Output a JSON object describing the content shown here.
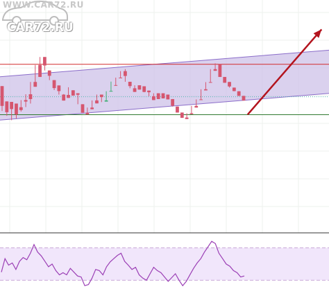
{
  "watermark": {
    "top_text": "WWW.CAR72.RU",
    "logo_text": "CAR72.RU"
  },
  "colors": {
    "bull": "#3fae73",
    "bear": "#d5566f",
    "channel_fill": "#cdc2e8",
    "channel_line": "#8a6cc9",
    "resistance": "#d22b2b",
    "support": "#2f7a2f",
    "price_dots": "#4fb7b0",
    "forecast_arrow": "#b3141e",
    "oscillator_line": "#9b3fb5",
    "oscillator_band": "#f1e6fb",
    "oscillator_band_edge": "#c8a8d8",
    "grid": "#eef0ee"
  },
  "chart_data": [
    {
      "type": "candlestick",
      "x_range": [
        0,
        64
      ],
      "y_range": [
        0,
        100
      ],
      "channel": {
        "upper": [
          [
            0,
            70.5
          ],
          [
            64,
            86.5
          ]
        ],
        "lower": [
          [
            0,
            44.5
          ],
          [
            64,
            60.5
          ]
        ]
      },
      "resistance_level": 78,
      "support_level": 47.7,
      "current_price_level": 58.5,
      "forecast_arrow": {
        "from": [
          50.2,
          47.8
        ],
        "to": [
          63.5,
          99
        ]
      },
      "candles": [
        [
          64.9,
          49.9,
          53.0,
          53.0
        ],
        [
          55.7,
          47.0,
          49.2,
          55.4
        ],
        [
          55.4,
          44.4,
          51.1,
          54.4
        ],
        [
          54.4,
          45.4,
          47.8,
          52.2
        ],
        [
          52.2,
          49.6,
          50.5,
          56.5
        ],
        [
          56.5,
          52.3,
          55.6,
          60.0
        ],
        [
          60.0,
          54.4,
          57.1,
          67.4
        ],
        [
          67.4,
          66.4,
          64.5,
          77.6
        ],
        [
          77.6,
          70.4,
          70.4,
          82.4
        ],
        [
          82.4,
          76.2,
          77.3,
          74.3
        ],
        [
          74.3,
          69.3,
          71.1,
          68.5
        ],
        [
          68.5,
          62.5,
          63.7,
          65.3
        ],
        [
          65.3,
          63.4,
          61.9,
          59.8
        ],
        [
          59.8,
          60.1,
          56.2,
          59.6
        ],
        [
          59.6,
          64.2,
          57.8,
          62.4
        ],
        [
          62.4,
          60.5,
          59.2,
          60.6
        ],
        [
          60.6,
          58.2,
          59.7,
          54.0
        ],
        [
          54.0,
          52.7,
          48.9,
          48.9
        ],
        [
          48.9,
          50.0,
          47.8,
          52.0
        ],
        [
          52.0,
          50.9,
          51.0,
          56.3
        ],
        [
          56.3,
          56.7,
          54.5,
          59.8
        ],
        [
          59.8,
          55.3,
          58.3,
          55.6
        ],
        [
          55.6,
          59.4,
          56.3,
          61.8
        ],
        [
          61.8,
          67.6,
          62.0,
          65.5
        ],
        [
          65.5,
          66.5,
          65.1,
          70.0
        ],
        [
          70.0,
          72.7,
          69.7,
          73.9
        ],
        [
          73.9,
          75.1,
          71.0,
          67.5
        ],
        [
          67.5,
          65.8,
          64.9,
          63.6
        ],
        [
          63.6,
          62.6,
          61.4,
          65.4
        ],
        [
          65.4,
          64.0,
          62.8,
          64.8
        ],
        [
          64.8,
          61.2,
          61.4,
          62.2
        ],
        [
          62.2,
          61.2,
          61.2,
          58.8
        ],
        [
          58.8,
          58.7,
          56.5,
          60.6
        ],
        [
          60.6,
          59.8,
          57.1,
          60.6
        ],
        [
          60.6,
          60.1,
          57.5,
          59.8
        ],
        [
          59.8,
          57.3,
          56.9,
          57.1
        ],
        [
          57.1,
          55.4,
          53.1,
          52.6
        ],
        [
          52.6,
          49.7,
          49.0,
          49.0
        ],
        [
          49.0,
          46.0,
          45.8,
          46.0
        ],
        [
          46.0,
          46.2,
          45.1,
          48.6
        ],
        [
          48.6,
          50.2,
          48.0,
          53.0
        ],
        [
          53.0,
          53.9,
          52.0,
          56.9
        ],
        [
          56.9,
          58.8,
          56.7,
          63.0
        ],
        [
          63.0,
          64.5,
          62.3,
          67.3
        ],
        [
          67.3,
          71.4,
          67.0,
          75.1
        ],
        [
          75.1,
          78.6,
          74.1,
          78.0
        ],
        [
          78.0,
          72.3,
          70.4,
          70.4
        ],
        [
          70.4,
          67.9,
          66.9,
          67.4
        ],
        [
          67.4,
          65.8,
          64.7,
          64.0
        ],
        [
          64.0,
          62.3,
          61.9,
          61.8
        ],
        [
          61.8,
          60.0,
          59.0,
          59.0
        ],
        [
          59.0,
          57.8,
          56.2,
          56.2
        ]
      ]
    },
    {
      "type": "line",
      "bands": [
        20,
        80
      ],
      "y_range": [
        0,
        100
      ],
      "values": [
        35,
        60,
        48,
        52,
        40,
        55,
        62,
        58,
        70,
        86,
        72,
        65,
        55,
        45,
        50,
        38,
        30,
        34,
        30,
        42,
        35,
        28,
        26,
        10,
        12,
        24,
        40,
        38,
        30,
        45,
        54,
        60,
        66,
        70,
        55,
        48,
        40,
        44,
        30,
        24,
        20,
        32,
        44,
        38,
        34,
        26,
        18,
        25,
        32,
        20,
        10,
        18,
        30,
        42,
        52,
        60,
        72,
        82,
        92,
        88,
        70,
        60,
        50,
        46,
        38,
        34,
        26,
        28
      ]
    }
  ]
}
